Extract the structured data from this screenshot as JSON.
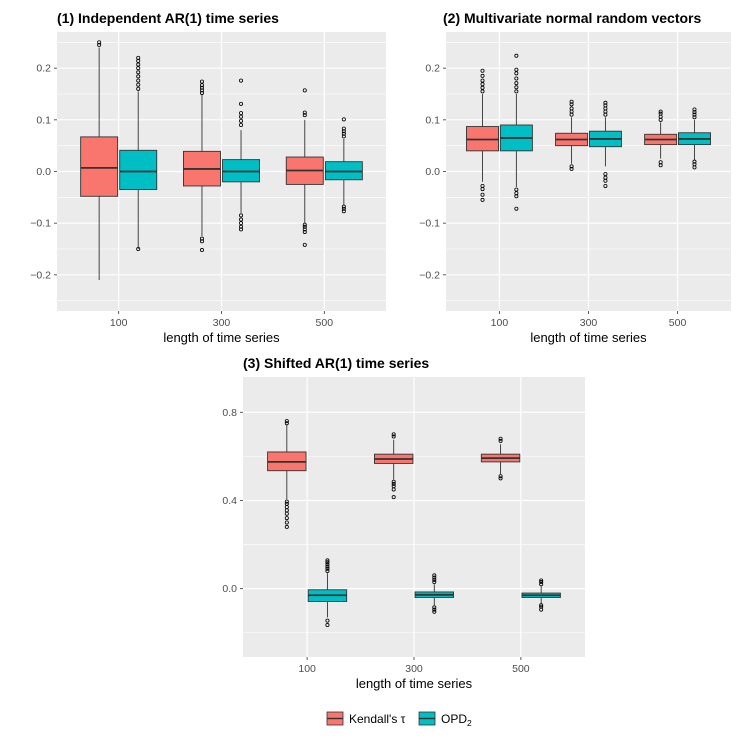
{
  "colors": {
    "kendall": "#F8766D",
    "opd": "#00BFC4",
    "panel_bg": "#EBEBEB",
    "grid": "#FFFFFF"
  },
  "legend": {
    "items": [
      {
        "label": "Kendall's τ",
        "color": "#F8766D"
      },
      {
        "label": "OPD",
        "subscript": "2",
        "color": "#00BFC4"
      }
    ]
  },
  "chart_data": [
    {
      "type": "boxplot",
      "title": "(1) Independent AR(1) time series",
      "xlabel": "length of time series",
      "ylabel": "",
      "categories": [
        "100",
        "300",
        "500"
      ],
      "ylim": [
        -0.27,
        0.27
      ],
      "yticks": [
        -0.2,
        -0.1,
        0.0,
        0.1,
        0.2
      ],
      "ytick_labels": [
        "−0.2",
        "−0.1",
        "0.0",
        "0.1",
        "0.2"
      ],
      "series": [
        {
          "name": "Kendall's τ",
          "boxes": [
            {
              "whislo": -0.21,
              "q1": -0.048,
              "med": 0.007,
              "q3": 0.067,
              "whishi": 0.24,
              "outliers": [
                0.245,
                0.25
              ]
            },
            {
              "whislo": -0.125,
              "q1": -0.028,
              "med": 0.005,
              "q3": 0.039,
              "whishi": 0.15,
              "outliers": [
                -0.13,
                -0.135,
                -0.152,
                0.152,
                0.157,
                0.162,
                0.167,
                0.174
              ]
            },
            {
              "whislo": -0.1,
              "q1": -0.025,
              "med": 0.002,
              "q3": 0.028,
              "whishi": 0.1,
              "outliers": [
                -0.103,
                -0.107,
                -0.112,
                -0.117,
                -0.142,
                0.109,
                0.114,
                0.157
              ]
            }
          ]
        },
        {
          "name": "OPD2",
          "boxes": [
            {
              "whislo": -0.15,
              "q1": -0.035,
              "med": 0.0,
              "q3": 0.041,
              "whishi": 0.155,
              "outliers": [
                -0.15,
                0.16,
                0.168,
                0.176,
                0.184,
                0.192,
                0.2,
                0.207,
                0.214,
                0.22
              ]
            },
            {
              "whislo": -0.08,
              "q1": -0.02,
              "med": 0.0,
              "q3": 0.023,
              "whishi": 0.08,
              "outliers": [
                -0.085,
                -0.093,
                -0.1,
                -0.107,
                -0.112,
                0.09,
                0.098,
                0.106,
                0.113,
                0.131,
                0.176
              ]
            },
            {
              "whislo": -0.065,
              "q1": -0.016,
              "med": 0.0,
              "q3": 0.019,
              "whishi": 0.063,
              "outliers": [
                -0.068,
                -0.072,
                -0.077,
                0.068,
                0.073,
                0.078,
                0.083,
                0.101
              ]
            }
          ]
        }
      ]
    },
    {
      "type": "boxplot",
      "title": "(2) Multivariate normal random vectors",
      "xlabel": "length of time series",
      "ylabel": "",
      "categories": [
        "100",
        "300",
        "500"
      ],
      "ylim": [
        -0.27,
        0.27
      ],
      "yticks": [
        -0.2,
        -0.1,
        0.0,
        0.1,
        0.2
      ],
      "ytick_labels": [
        "−0.2",
        "−0.1",
        "0.0",
        "0.1",
        "0.2"
      ],
      "series": [
        {
          "name": "Kendall's τ",
          "boxes": [
            {
              "whislo": -0.02,
              "q1": 0.04,
              "med": 0.062,
              "q3": 0.087,
              "whishi": 0.15,
              "outliers": [
                -0.028,
                -0.034,
                -0.045,
                -0.055,
                0.155,
                0.162,
                0.169,
                0.176,
                0.185,
                0.195
              ]
            },
            {
              "whislo": 0.015,
              "q1": 0.05,
              "med": 0.062,
              "q3": 0.074,
              "whishi": 0.105,
              "outliers": [
                0.005,
                0.01,
                0.11,
                0.116,
                0.122,
                0.13,
                0.135
              ]
            },
            {
              "whislo": 0.025,
              "q1": 0.052,
              "med": 0.062,
              "q3": 0.072,
              "whishi": 0.095,
              "outliers": [
                0.012,
                0.018,
                0.1,
                0.106,
                0.112,
                0.116
              ]
            }
          ]
        },
        {
          "name": "OPD2",
          "boxes": [
            {
              "whislo": -0.03,
              "q1": 0.04,
              "med": 0.065,
              "q3": 0.09,
              "whishi": 0.15,
              "outliers": [
                -0.035,
                -0.042,
                -0.048,
                -0.072,
                0.155,
                0.163,
                0.171,
                0.18,
                0.19,
                0.197,
                0.224
              ]
            },
            {
              "whislo": 0.01,
              "q1": 0.048,
              "med": 0.063,
              "q3": 0.078,
              "whishi": 0.105,
              "outliers": [
                -0.005,
                -0.012,
                -0.018,
                -0.028,
                0.11,
                0.116,
                0.122,
                0.128,
                0.133
              ]
            },
            {
              "whislo": 0.022,
              "q1": 0.052,
              "med": 0.063,
              "q3": 0.075,
              "whishi": 0.1,
              "outliers": [
                0.008,
                0.014,
                0.019,
                0.105,
                0.11,
                0.115,
                0.12
              ]
            }
          ]
        }
      ]
    },
    {
      "type": "boxplot",
      "title": "(3) Shifted AR(1) time series",
      "xlabel": "length of time series",
      "ylabel": "",
      "categories": [
        "100",
        "300",
        "500"
      ],
      "ylim": [
        -0.31,
        0.96
      ],
      "yticks": [
        0.0,
        0.4,
        0.8
      ],
      "ytick_labels": [
        "0.0",
        "0.4",
        "0.8"
      ],
      "series": [
        {
          "name": "Kendall's τ",
          "boxes": [
            {
              "whislo": 0.405,
              "q1": 0.535,
              "med": 0.575,
              "q3": 0.62,
              "whishi": 0.745,
              "outliers": [
                0.28,
                0.3,
                0.32,
                0.34,
                0.355,
                0.37,
                0.385,
                0.395,
                0.75,
                0.76
              ]
            },
            {
              "whislo": 0.495,
              "q1": 0.568,
              "med": 0.588,
              "q3": 0.61,
              "whishi": 0.675,
              "outliers": [
                0.415,
                0.45,
                0.465,
                0.475,
                0.485,
                0.69,
                0.7
              ]
            },
            {
              "whislo": 0.52,
              "q1": 0.575,
              "med": 0.592,
              "q3": 0.61,
              "whishi": 0.655,
              "outliers": [
                0.5,
                0.51,
                0.67,
                0.68
              ]
            }
          ]
        },
        {
          "name": "OPD2",
          "boxes": [
            {
              "whislo": -0.13,
              "q1": -0.058,
              "med": -0.03,
              "q3": -0.005,
              "whishi": 0.07,
              "outliers": [
                -0.145,
                -0.165,
                0.08,
                0.09,
                0.1,
                0.11,
                0.12,
                0.128
              ]
            },
            {
              "whislo": -0.075,
              "q1": -0.04,
              "med": -0.028,
              "q3": -0.015,
              "whishi": 0.02,
              "outliers": [
                -0.085,
                -0.095,
                -0.105,
                0.03,
                0.04,
                0.05,
                0.06
              ]
            },
            {
              "whislo": -0.07,
              "q1": -0.04,
              "med": -0.03,
              "q3": -0.02,
              "whishi": 0.01,
              "outliers": [
                -0.075,
                -0.082,
                -0.095,
                0.02,
                0.03,
                0.037
              ]
            }
          ]
        }
      ]
    }
  ]
}
